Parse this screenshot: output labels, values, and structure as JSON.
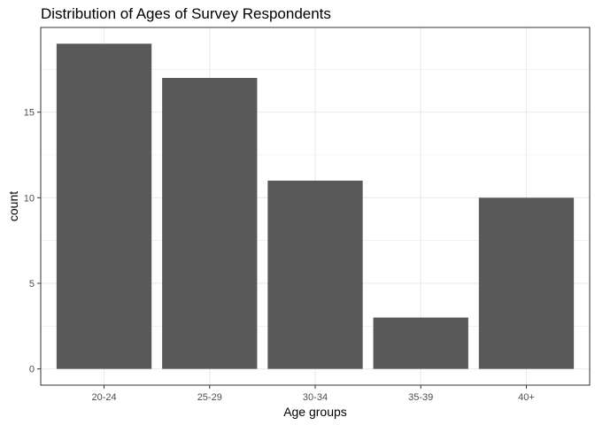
{
  "chart_data": {
    "type": "bar",
    "title": "Distribution of Ages of Survey Respondents",
    "xlabel": "Age groups",
    "ylabel": "count",
    "categories": [
      "20-24",
      "25-29",
      "30-34",
      "35-39",
      "40+"
    ],
    "values": [
      19,
      17,
      11,
      3,
      10
    ],
    "ylim": [
      -0.95,
      19.95
    ],
    "yticks": [
      0,
      5,
      10,
      15
    ],
    "grid": true,
    "bar_color": "#595959",
    "grid_color": "#ebebeb",
    "panel_border_color": "#333333",
    "tick_label_color": "#4d4d4d"
  }
}
